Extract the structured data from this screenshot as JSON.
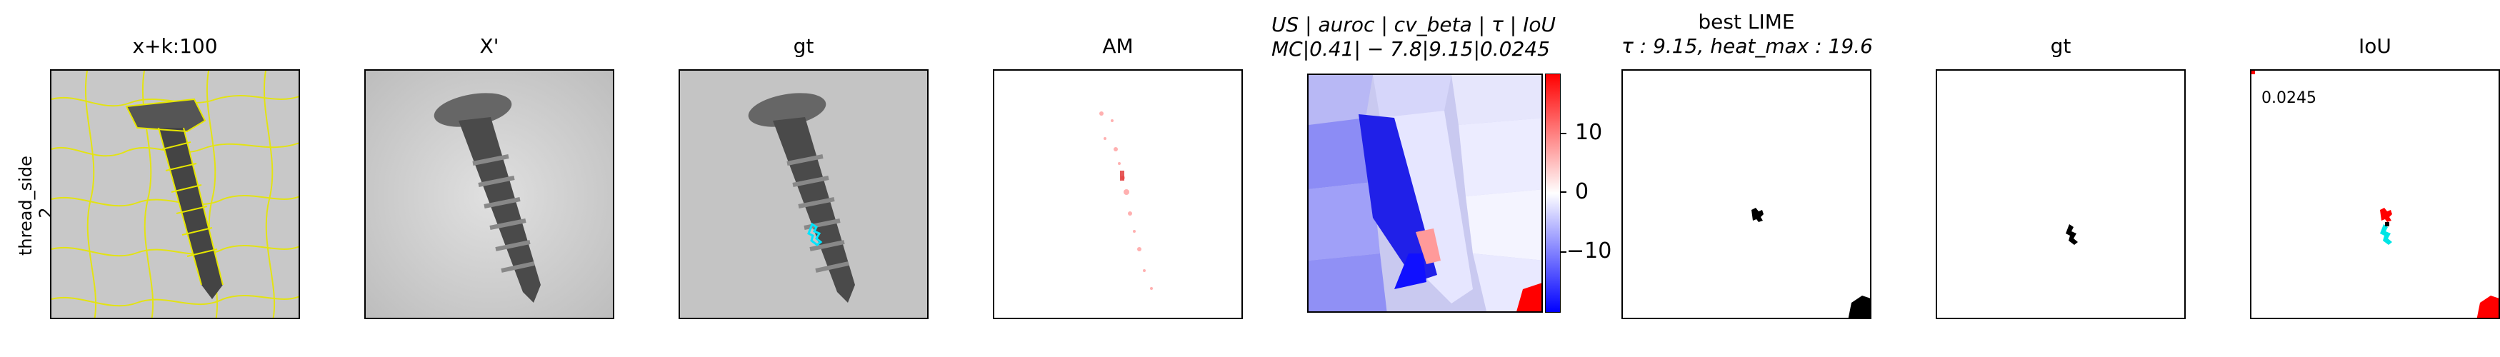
{
  "row_label": "thread_side\n2",
  "panels": {
    "p1": {
      "title": "x+k:100"
    },
    "p2": {
      "title": "X'"
    },
    "p3": {
      "title": "gt"
    },
    "p4": {
      "title": "AM"
    },
    "p5": {
      "title_line1": "US | auroc | cv_beta | τ | IoU",
      "title_line2": "MC|0.41| − 7.8|9.15|0.0245"
    },
    "p6": {
      "title_line1": "best LIME",
      "title_line2": "τ : 9.15, heat_max : 19.6"
    },
    "p7": {
      "title": "gt"
    },
    "p8": {
      "title": "IoU",
      "value_text": "0.0245"
    }
  },
  "colorbar": {
    "ticks": [
      "10",
      "0",
      "−10"
    ],
    "colors": {
      "high": "#ff0000",
      "mid": "#ffffff",
      "low": "#0000ff"
    }
  }
}
